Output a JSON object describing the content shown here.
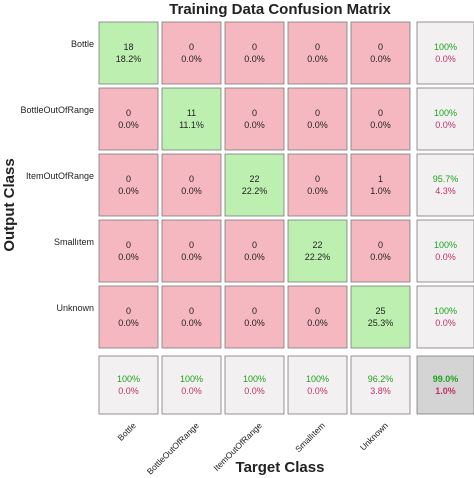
{
  "chart_data": {
    "type": "heatmap",
    "title": "Training Data Confusion Matrix",
    "xlabel": "Target Class",
    "ylabel": "Output Class",
    "classes": [
      "Bottle",
      "BottleOutOfRange",
      "ItemOutOfRange",
      "Smallıtem",
      "Unknown"
    ],
    "matrix": [
      [
        18,
        0,
        0,
        0,
        0
      ],
      [
        0,
        11,
        0,
        0,
        0
      ],
      [
        0,
        0,
        22,
        0,
        1
      ],
      [
        0,
        0,
        0,
        22,
        0
      ],
      [
        0,
        0,
        0,
        0,
        25
      ]
    ],
    "percent_labels": [
      [
        "18.2%",
        "0.0%",
        "0.0%",
        "0.0%",
        "0.0%"
      ],
      [
        "0.0%",
        "11.1%",
        "0.0%",
        "0.0%",
        "0.0%"
      ],
      [
        "0.0%",
        "0.0%",
        "22.2%",
        "0.0%",
        "1.0%"
      ],
      [
        "0.0%",
        "0.0%",
        "0.0%",
        "22.2%",
        "0.0%"
      ],
      [
        "0.0%",
        "0.0%",
        "0.0%",
        "0.0%",
        "25.3%"
      ]
    ],
    "row_summary": [
      {
        "correct": "100%",
        "error": "0.0%"
      },
      {
        "correct": "100%",
        "error": "0.0%"
      },
      {
        "correct": "95.7%",
        "error": "4.3%"
      },
      {
        "correct": "100%",
        "error": "0.0%"
      },
      {
        "correct": "100%",
        "error": "0.0%"
      }
    ],
    "col_summary": [
      {
        "correct": "100%",
        "error": "0.0%"
      },
      {
        "correct": "100%",
        "error": "0.0%"
      },
      {
        "correct": "100%",
        "error": "0.0%"
      },
      {
        "correct": "100%",
        "error": "0.0%"
      },
      {
        "correct": "96.2%",
        "error": "3.8%"
      }
    ],
    "overall": {
      "correct": "99.0%",
      "error": "1.0%"
    }
  },
  "colors": {
    "diagonal": "#bdf0b0",
    "off_diagonal": "#f6b8c0",
    "summary": "#f2f0f0",
    "overall": "#d4d4d4",
    "correct_text": "#1ea31e",
    "error_text": "#c0306a",
    "grid": "#ffffff",
    "border": "#7a7a7a"
  }
}
